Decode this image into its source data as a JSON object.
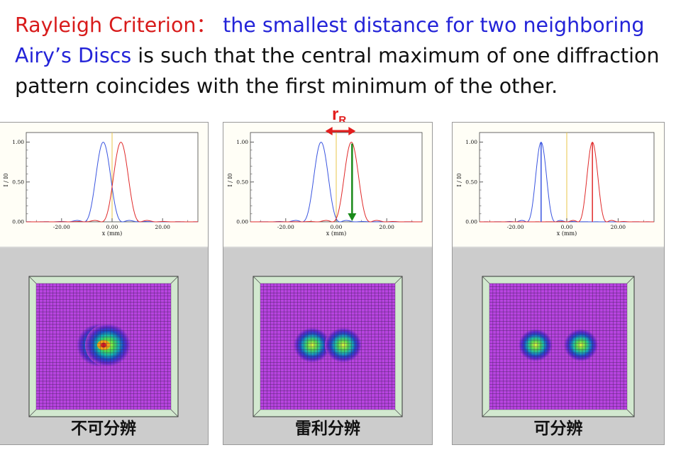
{
  "heading": {
    "term": "Rayleigh Criterion",
    "colon": "：",
    "definition_part1": "the smallest distance for two neighboring",
    "definition_part2": "Airy’s Discs",
    "rest": " is such that the central maximum of one diffraction pattern coincides with the first minimum of the other."
  },
  "annotation": {
    "symbol": "r",
    "subscript": "R"
  },
  "colors": {
    "heading_red": "#d81b1b",
    "heading_blue": "#2323d8",
    "curve1": "#3a55e0",
    "curve2": "#e02a2a",
    "arrow_red": "#e21d1d",
    "arrow_green": "#1a8a1a",
    "center_line": "#e8c44a"
  },
  "chart_data": [
    {
      "type": "line",
      "panel_label": "不可分辨",
      "xlabel": "x (mm)",
      "ylabel": "I / I0",
      "x_ticks": [
        "-20.00",
        "0.00",
        "20.00"
      ],
      "y_ticks": [
        "0.00",
        "0.50",
        "1.00"
      ],
      "xlim": [
        -34,
        34
      ],
      "ylim": [
        0,
        1.05
      ],
      "series": [
        {
          "center": -3.5
        },
        {
          "center": 3.5
        }
      ],
      "airy_scale": 2.0
    },
    {
      "type": "line",
      "panel_label": "雷利分辨",
      "xlabel": "x (mm)",
      "ylabel": "I / I0",
      "x_ticks": [
        "-20.00",
        "0.00",
        "20.00"
      ],
      "y_ticks": [
        "0.00",
        "0.50",
        "1.00"
      ],
      "xlim": [
        -34,
        34
      ],
      "ylim": [
        0,
        1.05
      ],
      "series": [
        {
          "center": -6
        },
        {
          "center": 6
        }
      ],
      "airy_scale": 1.95
    },
    {
      "type": "line",
      "panel_label": "可分辨",
      "xlabel": "x (mm)",
      "ylabel": "I / I0",
      "x_ticks": [
        "-20.00",
        "0.00",
        "20.00"
      ],
      "y_ticks": [
        "0.00",
        "0.50",
        "1.00"
      ],
      "xlim": [
        -34,
        34
      ],
      "ylim": [
        0,
        1.05
      ],
      "series": [
        {
          "center": -10
        },
        {
          "center": 10
        }
      ],
      "airy_scale": 1.45
    }
  ]
}
